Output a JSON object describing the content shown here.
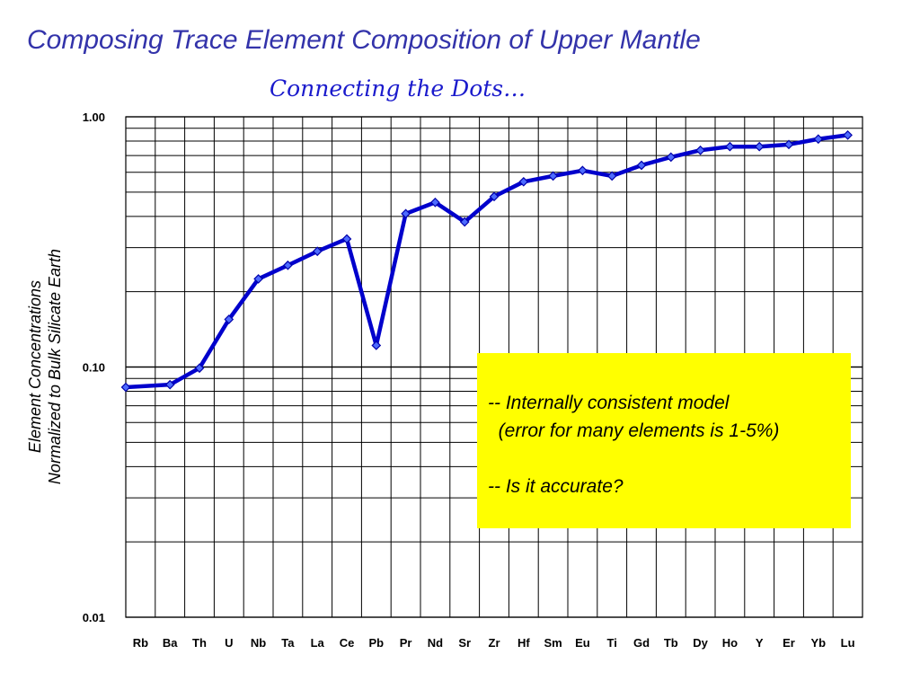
{
  "slide": {
    "title": "Composing Trace Element Composition of Upper Mantle",
    "subtitle": "Connecting the Dots…"
  },
  "note": {
    "line1": "-- Internally consistent model",
    "line2": "  (error for many elements is 1-5%)",
    "line3": "-- Is it accurate?",
    "background": "#ffff00"
  },
  "chart_data": {
    "type": "line",
    "ylabel_line1": "Element Concentrations",
    "ylabel_line2": "Normalized to Bulk Silicate Earth",
    "y_scale": "log",
    "ylim": [
      0.01,
      1.0
    ],
    "y_ticks": [
      "1.00",
      "0.10",
      "0.01"
    ],
    "y_tick_values": [
      1.0,
      0.1,
      0.01
    ],
    "grid": true,
    "line_color": "#0000cc",
    "marker": "diamond",
    "categories": [
      "Rb",
      "Ba",
      "Th",
      "U",
      "Nb",
      "Ta",
      "La",
      "Ce",
      "Pb",
      "Pr",
      "Nd",
      "Sr",
      "Zr",
      "Hf",
      "Sm",
      "Eu",
      "Ti",
      "Gd",
      "Tb",
      "Dy",
      "Ho",
      "Y",
      "Er",
      "Yb",
      "Lu"
    ],
    "values": [
      0.083,
      0.085,
      0.099,
      0.155,
      0.225,
      0.255,
      0.29,
      0.325,
      0.122,
      0.41,
      0.455,
      0.38,
      0.48,
      0.55,
      0.58,
      0.61,
      0.58,
      0.64,
      0.69,
      0.735,
      0.76,
      0.76,
      0.775,
      0.815,
      0.845
    ]
  }
}
